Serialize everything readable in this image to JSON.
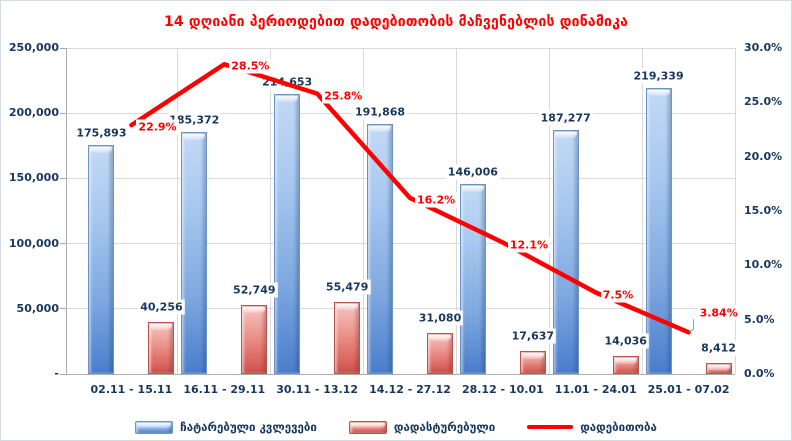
{
  "chart_data": {
    "type": "combo-bar-line",
    "title": "14 დღიანი პერიოდებით დადებითობის მაჩვენებლის დინამიკა",
    "title_color": "#ff0000",
    "categories": [
      "02.11 - 15.11",
      "16.11 - 29.11",
      "30.11 - 13.12",
      "14.12 - 27.12",
      "28.12 - 10.01",
      "11.01 - 24.01",
      "25.01 - 07.02"
    ],
    "series": [
      {
        "name": "ჩატარებული კვლევები",
        "type": "bar",
        "axis": "left",
        "color_light": "#bdd7f2",
        "color_dark": "#4a7ecb",
        "values": [
          175893,
          185372,
          214653,
          191868,
          146006,
          187277,
          219339
        ],
        "labels": [
          "175,893",
          "185,372",
          "214,653",
          "191,868",
          "146,006",
          "187,277",
          "219,339"
        ]
      },
      {
        "name": "დადასტურებული",
        "type": "bar",
        "axis": "left",
        "color_light": "#f2b8b4",
        "color_dark": "#c0504d",
        "values": [
          40256,
          52749,
          55479,
          31080,
          17637,
          14036,
          8412
        ],
        "labels": [
          "40,256",
          "52,749",
          "55,479",
          "31,080",
          "17,637",
          "14,036",
          "8,412"
        ]
      },
      {
        "name": "დადებითობა",
        "type": "line",
        "axis": "right",
        "color": "#ff0000",
        "values": [
          22.9,
          28.5,
          25.8,
          16.2,
          12.1,
          7.5,
          3.84
        ],
        "labels": [
          "22.9%",
          "28.5%",
          "25.8%",
          "16.2%",
          "12.1%",
          "7.5%",
          "3.84%"
        ]
      }
    ],
    "left_axis": {
      "min": 0,
      "max": 250000,
      "step": 50000,
      "tick_values": [
        250000,
        200000,
        150000,
        100000,
        50000,
        0
      ],
      "tick_labels": [
        "250,000",
        "200,000",
        "150,000",
        "100,000",
        "50,000",
        "-"
      ]
    },
    "right_axis": {
      "min": 0,
      "max": 30,
      "step": 5,
      "tick_values": [
        30,
        25,
        20,
        15,
        10,
        5,
        0
      ],
      "tick_labels": [
        "30.0%",
        "25.0%",
        "20.0%",
        "15.0%",
        "10.0%",
        "5.0%",
        "0.0%"
      ]
    },
    "grid": true,
    "grid_color": "#d9d9d9",
    "axis_text_color": "#17375e",
    "legend_position": "bottom"
  }
}
